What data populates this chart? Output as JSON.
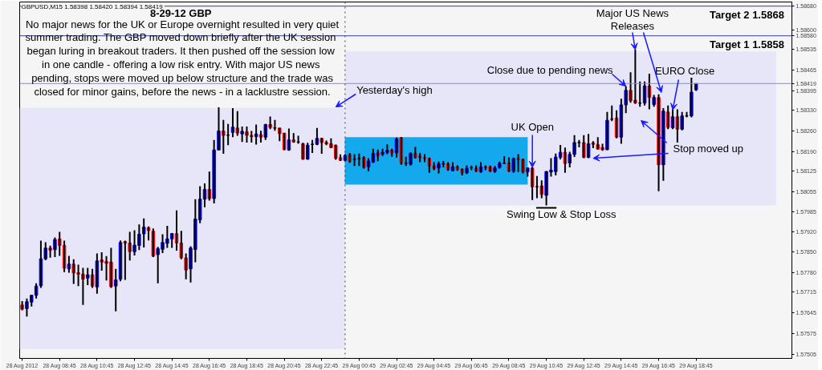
{
  "chart_data": {
    "type": "candlestick",
    "title": "8-29-12  GBP",
    "subtitle": "GBPUSD,M15  1.58398 1.58420 1.58394 1.58419",
    "annotations": [
      "No major news for the UK or Europe overnight resulted in very quiet\nsummer trading.  The GBP moved down briefly after the UK session\nbegan luring in breakout traders.  It then pushed off the session low\nin one candle - offering a low risk entry.  With major US news\npending, stops were moved up below structure and the trade was\nclosed for minor gains, before the news - in a lacklustre session.",
      {
        "text": "Yesterday's high",
        "x": "2012-08-28T23:30",
        "y": 1.5834
      },
      {
        "text": "UK Open",
        "x": "2012-08-29T10:00",
        "y": 1.58136
      },
      {
        "text": "Swing Low & Stop Loss",
        "x": "2012-08-29T10:45",
        "y": 1.58
      },
      {
        "text": "Close due to pending news",
        "x": "2012-08-29T15:00",
        "y": 1.5841
      },
      {
        "text": "Major US News\nReleases",
        "x": "2012-08-29T15:30",
        "y": 1.58533
      },
      {
        "text": "EURO Close",
        "x": "2012-08-29T17:30",
        "y": 1.5833
      },
      {
        "text": "Stop moved up",
        "x": "2012-08-29T13:15",
        "y": 1.58167
      }
    ],
    "x": [
      "2012-08-28T06:45",
      "2012-08-28T07:00",
      "2012-08-28T07:15",
      "2012-08-28T07:30",
      "2012-08-28T07:45",
      "2012-08-28T08:00",
      "2012-08-28T08:15",
      "2012-08-28T08:30",
      "2012-08-28T08:45",
      "2012-08-28T09:00",
      "2012-08-28T09:15",
      "2012-08-28T09:30",
      "2012-08-28T09:45",
      "2012-08-28T10:00",
      "2012-08-28T10:15",
      "2012-08-28T10:30",
      "2012-08-28T10:45",
      "2012-08-28T11:00",
      "2012-08-28T11:15",
      "2012-08-28T11:30",
      "2012-08-28T11:45",
      "2012-08-28T12:00",
      "2012-08-28T12:15",
      "2012-08-28T12:30",
      "2012-08-28T12:45",
      "2012-08-28T13:00",
      "2012-08-28T13:15",
      "2012-08-28T13:30",
      "2012-08-28T13:45",
      "2012-08-28T14:00",
      "2012-08-28T14:15",
      "2012-08-28T14:30",
      "2012-08-28T14:45",
      "2012-08-28T15:00",
      "2012-08-28T15:15",
      "2012-08-28T15:30",
      "2012-08-28T15:45",
      "2012-08-28T16:00",
      "2012-08-28T16:15",
      "2012-08-28T16:30",
      "2012-08-28T16:45",
      "2012-08-28T17:00",
      "2012-08-28T17:15",
      "2012-08-28T17:30",
      "2012-08-28T17:45",
      "2012-08-28T18:00",
      "2012-08-28T18:15",
      "2012-08-28T18:30",
      "2012-08-28T18:45",
      "2012-08-28T19:00",
      "2012-08-28T19:15",
      "2012-08-28T19:30",
      "2012-08-28T19:45",
      "2012-08-28T20:00",
      "2012-08-28T20:15",
      "2012-08-28T20:30",
      "2012-08-28T20:45",
      "2012-08-28T21:00",
      "2012-08-28T21:15",
      "2012-08-28T21:30",
      "2012-08-28T21:45",
      "2012-08-28T22:00",
      "2012-08-28T22:15",
      "2012-08-28T22:30",
      "2012-08-28T22:45",
      "2012-08-28T23:00",
      "2012-08-28T23:15",
      "2012-08-28T23:30",
      "2012-08-28T23:45",
      "2012-08-29T00:00",
      "2012-08-29T00:15",
      "2012-08-29T00:30",
      "2012-08-29T00:45",
      "2012-08-29T01:00",
      "2012-08-29T01:15",
      "2012-08-29T01:30",
      "2012-08-29T01:45",
      "2012-08-29T02:00",
      "2012-08-29T02:15",
      "2012-08-29T02:30",
      "2012-08-29T02:45",
      "2012-08-29T03:00",
      "2012-08-29T03:15",
      "2012-08-29T03:30",
      "2012-08-29T03:45",
      "2012-08-29T04:00",
      "2012-08-29T04:15",
      "2012-08-29T04:30",
      "2012-08-29T04:45",
      "2012-08-29T05:00",
      "2012-08-29T05:15",
      "2012-08-29T05:30",
      "2012-08-29T05:45",
      "2012-08-29T06:00",
      "2012-08-29T06:15",
      "2012-08-29T06:30",
      "2012-08-29T06:45",
      "2012-08-29T07:00",
      "2012-08-29T07:15",
      "2012-08-29T07:30",
      "2012-08-29T07:45",
      "2012-08-29T08:00",
      "2012-08-29T08:15",
      "2012-08-29T08:30",
      "2012-08-29T08:45",
      "2012-08-29T09:00",
      "2012-08-29T09:15",
      "2012-08-29T09:30",
      "2012-08-29T09:45",
      "2012-08-29T10:00",
      "2012-08-29T10:15",
      "2012-08-29T10:30",
      "2012-08-29T10:45",
      "2012-08-29T11:00",
      "2012-08-29T11:15",
      "2012-08-29T11:30",
      "2012-08-29T11:45",
      "2012-08-29T12:00",
      "2012-08-29T12:15",
      "2012-08-29T12:30",
      "2012-08-29T12:45",
      "2012-08-29T13:00",
      "2012-08-29T13:15",
      "2012-08-29T13:30",
      "2012-08-29T13:45",
      "2012-08-29T14:00",
      "2012-08-29T14:15",
      "2012-08-29T14:30",
      "2012-08-29T14:45",
      "2012-08-29T15:00",
      "2012-08-29T15:15",
      "2012-08-29T15:30",
      "2012-08-29T15:45",
      "2012-08-29T16:00",
      "2012-08-29T16:15",
      "2012-08-29T16:30",
      "2012-08-29T16:45",
      "2012-08-29T17:00",
      "2012-08-29T17:15",
      "2012-08-29T17:30",
      "2012-08-29T17:45",
      "2012-08-29T18:00",
      "2012-08-29T18:15",
      "2012-08-29T18:30",
      "2012-08-29T18:45"
    ],
    "ohlc": [
      [
        1.57672,
        1.57685,
        1.57654,
        1.57658
      ],
      [
        1.5766,
        1.57694,
        1.57633,
        1.57683
      ],
      [
        1.57682,
        1.57707,
        1.57667,
        1.57705
      ],
      [
        1.57705,
        1.57745,
        1.57694,
        1.57736
      ],
      [
        1.57737,
        1.57889,
        1.5773,
        1.57828
      ],
      [
        1.57828,
        1.57884,
        1.57823,
        1.57864
      ],
      [
        1.57864,
        1.57872,
        1.57832,
        1.57857
      ],
      [
        1.57859,
        1.579,
        1.57834,
        1.57893
      ],
      [
        1.57895,
        1.57919,
        1.57838,
        1.57873
      ],
      [
        1.57873,
        1.57889,
        1.57783,
        1.57796
      ],
      [
        1.57794,
        1.57838,
        1.57781,
        1.5781
      ],
      [
        1.5781,
        1.57826,
        1.57743,
        1.5778
      ],
      [
        1.57781,
        1.57808,
        1.57736,
        1.57776
      ],
      [
        1.57776,
        1.57797,
        1.57672,
        1.57759
      ],
      [
        1.57763,
        1.57797,
        1.57739,
        1.57774
      ],
      [
        1.57774,
        1.57794,
        1.5773,
        1.57736
      ],
      [
        1.57733,
        1.57846,
        1.5771,
        1.57821
      ],
      [
        1.57824,
        1.5785,
        1.57788,
        1.57817
      ],
      [
        1.57819,
        1.57837,
        1.57755,
        1.57813
      ],
      [
        1.57817,
        1.57865,
        1.5773,
        1.57734
      ],
      [
        1.57736,
        1.57794,
        1.57651,
        1.57757
      ],
      [
        1.57759,
        1.5789,
        1.57752,
        1.57883
      ],
      [
        1.57886,
        1.57889,
        1.57757,
        1.5788
      ],
      [
        1.57881,
        1.57919,
        1.57822,
        1.57852
      ],
      [
        1.57852,
        1.57924,
        1.57839,
        1.57874
      ],
      [
        1.57873,
        1.57944,
        1.57857,
        1.57911
      ],
      [
        1.57912,
        1.57964,
        1.57866,
        1.57935
      ],
      [
        1.57933,
        1.57937,
        1.5789,
        1.57923
      ],
      [
        1.57921,
        1.5793,
        1.57834,
        1.57837
      ],
      [
        1.57842,
        1.57868,
        1.57745,
        1.57862
      ],
      [
        1.5786,
        1.57911,
        1.57847,
        1.57883
      ],
      [
        1.5788,
        1.57939,
        1.57865,
        1.57895
      ],
      [
        1.57895,
        1.57915,
        1.57865,
        1.57913
      ],
      [
        1.57913,
        1.57991,
        1.57855,
        1.57881
      ],
      [
        1.57881,
        1.57922,
        1.57826,
        1.57831
      ],
      [
        1.57831,
        1.57846,
        1.57759,
        1.5779
      ],
      [
        1.57794,
        1.5787,
        1.57748,
        1.57864
      ],
      [
        1.57859,
        1.58029,
        1.57816,
        1.57962
      ],
      [
        1.57959,
        1.58073,
        1.57948,
        1.58029
      ],
      [
        1.58029,
        1.58082,
        1.58002,
        1.58062
      ],
      [
        1.58062,
        1.58122,
        1.58024,
        1.58031
      ],
      [
        1.58031,
        1.58229,
        1.58015,
        1.58195
      ],
      [
        1.58195,
        1.58339,
        1.58194,
        1.58259
      ],
      [
        1.58259,
        1.58296,
        1.58182,
        1.58244
      ],
      [
        1.58245,
        1.58283,
        1.58211,
        1.58245
      ],
      [
        1.58254,
        1.58336,
        1.58238,
        1.58272
      ],
      [
        1.58269,
        1.58326,
        1.58243,
        1.58252
      ],
      [
        1.58249,
        1.58274,
        1.58222,
        1.58258
      ],
      [
        1.58256,
        1.58274,
        1.5822,
        1.58244
      ],
      [
        1.58244,
        1.58259,
        1.5822,
        1.5824
      ],
      [
        1.5824,
        1.58281,
        1.58213,
        1.58249
      ],
      [
        1.58247,
        1.5826,
        1.5822,
        1.58238
      ],
      [
        1.58238,
        1.58283,
        1.58229,
        1.58281
      ],
      [
        1.58281,
        1.58308,
        1.58265,
        1.58271
      ],
      [
        1.58269,
        1.58296,
        1.5826,
        1.58269
      ],
      [
        1.58269,
        1.58269,
        1.58225,
        1.5825
      ],
      [
        1.58252,
        1.58252,
        1.58194,
        1.58196
      ],
      [
        1.58195,
        1.58267,
        1.58192,
        1.58229
      ],
      [
        1.58229,
        1.58252,
        1.58219,
        1.58222
      ],
      [
        1.58222,
        1.58243,
        1.58216,
        1.58222
      ],
      [
        1.58216,
        1.58219,
        1.58162,
        1.58164
      ],
      [
        1.58164,
        1.58219,
        1.58162,
        1.58211
      ],
      [
        1.58214,
        1.58229,
        1.58185,
        1.58214
      ],
      [
        1.58214,
        1.58269,
        1.58211,
        1.58234
      ],
      [
        1.58234,
        1.58236,
        1.58182,
        1.5822
      ],
      [
        1.5822,
        1.58227,
        1.58211,
        1.58216
      ],
      [
        1.58216,
        1.58234,
        1.58201,
        1.58203
      ],
      [
        1.58211,
        1.58213,
        1.58162,
        1.58167
      ],
      [
        1.58169,
        1.5818,
        1.58158,
        1.5816
      ],
      [
        1.5816,
        1.58181,
        1.58157,
        1.58176
      ],
      [
        1.58179,
        1.58185,
        1.58152,
        1.58156
      ],
      [
        1.58163,
        1.58181,
        1.58141,
        1.58163
      ],
      [
        1.58166,
        1.58183,
        1.58141,
        1.58166
      ],
      [
        1.58169,
        1.58174,
        1.58132,
        1.58136
      ],
      [
        1.58138,
        1.58167,
        1.58123,
        1.58158
      ],
      [
        1.58154,
        1.58199,
        1.58151,
        1.58183
      ],
      [
        1.58185,
        1.58196,
        1.58157,
        1.58176
      ],
      [
        1.58181,
        1.58199,
        1.58175,
        1.58187
      ],
      [
        1.58187,
        1.58214,
        1.58181,
        1.58194
      ],
      [
        1.58194,
        1.58199,
        1.58172,
        1.58185
      ],
      [
        1.58185,
        1.58237,
        1.58169,
        1.58232
      ],
      [
        1.58236,
        1.58239,
        1.58145,
        1.5815
      ],
      [
        1.5815,
        1.58172,
        1.58141,
        1.5815
      ],
      [
        1.58147,
        1.58187,
        1.58142,
        1.58183
      ],
      [
        1.58183,
        1.58205,
        1.58166,
        1.5817
      ],
      [
        1.58174,
        1.58185,
        1.58154,
        1.58169
      ],
      [
        1.58169,
        1.58181,
        1.58154,
        1.58166
      ],
      [
        1.58167,
        1.58169,
        1.58118,
        1.58141
      ],
      [
        1.58141,
        1.58154,
        1.58127,
        1.58132
      ],
      [
        1.58134,
        1.58156,
        1.58116,
        1.58148
      ],
      [
        1.58148,
        1.58158,
        1.58136,
        1.58148
      ],
      [
        1.58148,
        1.58154,
        1.58125,
        1.58129
      ],
      [
        1.58125,
        1.58154,
        1.58123,
        1.58138
      ],
      [
        1.58138,
        1.58143,
        1.58125,
        1.5813
      ],
      [
        1.5813,
        1.58133,
        1.58109,
        1.58118
      ],
      [
        1.58118,
        1.58143,
        1.58114,
        1.58133
      ],
      [
        1.58135,
        1.58142,
        1.58127,
        1.58135
      ],
      [
        1.58134,
        1.58143,
        1.58121,
        1.58123
      ],
      [
        1.58121,
        1.58154,
        1.58118,
        1.58138
      ],
      [
        1.58138,
        1.58143,
        1.58127,
        1.58134
      ],
      [
        1.58138,
        1.58142,
        1.58121,
        1.58123
      ],
      [
        1.58123,
        1.58141,
        1.58118,
        1.58134
      ],
      [
        1.58136,
        1.58156,
        1.58132,
        1.5815
      ],
      [
        1.5815,
        1.58174,
        1.58147,
        1.5815
      ],
      [
        1.58151,
        1.5817,
        1.58121,
        1.58123
      ],
      [
        1.58123,
        1.58169,
        1.58118,
        1.58166
      ],
      [
        1.58166,
        1.58181,
        1.58121,
        1.58163
      ],
      [
        1.58163,
        1.58166,
        1.58116,
        1.58121
      ],
      [
        1.58121,
        1.58136,
        1.58105,
        1.58134
      ],
      [
        1.58134,
        1.58136,
        1.58026,
        1.58071
      ],
      [
        1.58071,
        1.58107,
        1.58032,
        1.58071
      ],
      [
        1.58074,
        1.58092,
        1.58032,
        1.58045
      ],
      [
        1.58042,
        1.58124,
        1.58008,
        1.58122
      ],
      [
        1.58121,
        1.58167,
        1.58105,
        1.58127
      ],
      [
        1.58122,
        1.58183,
        1.58109,
        1.58171
      ],
      [
        1.5817,
        1.58212,
        1.58163,
        1.58187
      ],
      [
        1.58187,
        1.58203,
        1.58118,
        1.58149
      ],
      [
        1.58151,
        1.58189,
        1.58136,
        1.5818
      ],
      [
        1.5818,
        1.58245,
        1.58171,
        1.5822
      ],
      [
        1.5822,
        1.58229,
        1.58204,
        1.5822
      ],
      [
        1.5822,
        1.58245,
        1.58167,
        1.5817
      ],
      [
        1.5817,
        1.58249,
        1.58167,
        1.58216
      ],
      [
        1.58219,
        1.58225,
        1.58201,
        1.58214
      ],
      [
        1.58213,
        1.58238,
        1.58196,
        1.58198
      ],
      [
        1.58203,
        1.58216,
        1.58192,
        1.58196
      ],
      [
        1.58196,
        1.58323,
        1.58194,
        1.58295
      ],
      [
        1.58299,
        1.58345,
        1.58292,
        1.58299
      ],
      [
        1.58303,
        1.58329,
        1.58234,
        1.58238
      ],
      [
        1.58238,
        1.58368,
        1.58216,
        1.58347
      ],
      [
        1.58347,
        1.5841,
        1.58319,
        1.58396
      ],
      [
        1.58396,
        1.58457,
        1.58354,
        1.58361
      ],
      [
        1.58363,
        1.58533,
        1.5835,
        1.58354
      ],
      [
        1.58353,
        1.58426,
        1.58341,
        1.58353
      ],
      [
        1.58353,
        1.58426,
        1.58345,
        1.58411
      ],
      [
        1.58411,
        1.58452,
        1.58332,
        1.58372
      ],
      [
        1.58348,
        1.58381,
        1.58341,
        1.58372
      ],
      [
        1.58372,
        1.58383,
        1.58056,
        1.58145
      ],
      [
        1.58145,
        1.58336,
        1.58091,
        1.58326
      ],
      [
        1.58323,
        1.58345,
        1.58265,
        1.58271
      ],
      [
        1.5827,
        1.58332,
        1.58265,
        1.58307
      ],
      [
        1.58307,
        1.58332,
        1.5822,
        1.58265
      ],
      [
        1.58265,
        1.58323,
        1.58261,
        1.5831
      ],
      [
        1.5831,
        1.58323,
        1.58305,
        1.5831
      ],
      [
        1.5831,
        1.58439,
        1.58305,
        1.5839
      ],
      [
        1.58398,
        1.5842,
        1.58394,
        1.58419
      ]
    ],
    "colors": [
      "#ff0000",
      "#0000ff",
      "#0000ff",
      "#0000ff",
      "#0000ff",
      "#0000ff",
      "#ff0000",
      "#0000ff",
      "#ff0000",
      "#ff0000",
      "#0000ff",
      "#ff0000",
      "#ff0000",
      "#ff0000",
      "#0000ff",
      "#ff0000",
      "#0000ff",
      "#ff0000",
      "#ff0000",
      "#ff0000",
      "#0000ff",
      "#0000ff",
      "#ff0000",
      "#ff0000",
      "#0000ff",
      "#0000ff",
      "#0000ff",
      "#ff0000",
      "#ff0000",
      "#0000ff",
      "#0000ff",
      "#0000ff",
      "#0000ff",
      "#ff0000",
      "#ff0000",
      "#ff0000",
      "#0000ff",
      "#0000ff",
      "#0000ff",
      "#0000ff",
      "#ff0000",
      "#0000ff",
      "#0000ff",
      "#ff0000",
      "#000000",
      "#0000ff",
      "#ff0000",
      "#0000ff",
      "#ff0000",
      "#ff0000",
      "#0000ff",
      "#ff0000",
      "#0000ff",
      "#ff0000",
      "#000000",
      "#ff0000",
      "#ff0000",
      "#0000ff",
      "#ff0000",
      "#000000",
      "#ff0000",
      "#0000ff",
      "#000000",
      "#0000ff",
      "#ff0000",
      "#ff0000",
      "#ff0000",
      "#ff0000",
      "#ff0000",
      "#0000ff",
      "#ff0000",
      "#000000",
      "#000000",
      "#ff0000",
      "#0000ff",
      "#0000ff",
      "#ff0000",
      "#0000ff",
      "#0000ff",
      "#ff0000",
      "#0000ff",
      "#ff0000",
      "#000000",
      "#0000ff",
      "#ff0000",
      "#ff0000",
      "#ff0000",
      "#ff0000",
      "#ff0000",
      "#0000ff",
      "#000000",
      "#ff0000",
      "#0000ff",
      "#ff0000",
      "#ff0000",
      "#0000ff",
      "#000000",
      "#ff0000",
      "#0000ff",
      "#ff0000",
      "#ff0000",
      "#0000ff",
      "#0000ff",
      "#000000",
      "#ff0000",
      "#0000ff",
      "#ff0000",
      "#ff0000",
      "#0000ff",
      "#ff0000",
      "#000000",
      "#ff0000",
      "#0000ff",
      "#0000ff",
      "#0000ff",
      "#0000ff",
      "#ff0000",
      "#0000ff",
      "#0000ff",
      "#000000",
      "#ff0000",
      "#0000ff",
      "#ff0000",
      "#ff0000",
      "#ff0000",
      "#0000ff",
      "#000000",
      "#ff0000",
      "#0000ff",
      "#0000ff",
      "#ff0000",
      "#ff0000",
      "#000000",
      "#0000ff",
      "#ff0000",
      "#0000ff",
      "#ff0000",
      "#0000ff",
      "#ff0000",
      "#0000ff",
      "#ff0000",
      "#0000ff",
      "#000000",
      "#0000ff",
      "#0000ff"
    ],
    "xlim": [
      "2012-08-28T06:37",
      "2012-08-29T23:52"
    ],
    "xticks": [
      {
        "value": "2012-08-28T06:45",
        "label": "28 Aug 2012"
      },
      {
        "value": "2012-08-28T08:45",
        "label": "28 Aug 08:45"
      },
      {
        "value": "2012-08-28T10:45",
        "label": "28 Aug 10:45"
      },
      {
        "value": "2012-08-28T12:45",
        "label": "28 Aug 12:45"
      },
      {
        "value": "2012-08-28T14:45",
        "label": "28 Aug 14:45"
      },
      {
        "value": "2012-08-28T16:45",
        "label": "28 Aug 16:45"
      },
      {
        "value": "2012-08-28T18:45",
        "label": "28 Aug 18:45"
      },
      {
        "value": "2012-08-28T20:45",
        "label": "28 Aug 20:45"
      },
      {
        "value": "2012-08-28T22:45",
        "label": "28 Aug 22:45"
      },
      {
        "value": "2012-08-29T00:45",
        "label": "29 Aug 00:45"
      },
      {
        "value": "2012-08-29T02:45",
        "label": "29 Aug 02:45"
      },
      {
        "value": "2012-08-29T04:45",
        "label": "29 Aug 04:45"
      },
      {
        "value": "2012-08-29T06:45",
        "label": "29 Aug 06:45"
      },
      {
        "value": "2012-08-29T08:45",
        "label": "29 Aug 08:45"
      },
      {
        "value": "2012-08-29T10:45",
        "label": "29 Aug 10:45"
      },
      {
        "value": "2012-08-29T12:45",
        "label": "29 Aug 12:45"
      },
      {
        "value": "2012-08-29T14:45",
        "label": "29 Aug 14:45"
      },
      {
        "value": "2012-08-29T16:45",
        "label": "29 Aug 16:45"
      },
      {
        "value": "2012-08-29T18:45",
        "label": "29 Aug 18:45"
      }
    ],
    "ylim": [
      1.57492,
      1.58694
    ],
    "yticks": [
      {
        "value": 1.5868,
        "label": "1.58680"
      },
      {
        "value": 1.586,
        "label": "1.58600"
      },
      {
        "value": 1.5858,
        "label": "1.58580"
      },
      {
        "value": 1.58419,
        "label": "1.58419"
      },
      {
        "value": 1.58535,
        "label": "1.58535"
      },
      {
        "value": 1.58465,
        "label": "1.58465"
      },
      {
        "value": 1.58395,
        "label": "1.58395"
      },
      {
        "value": 1.5833,
        "label": "1.58330"
      },
      {
        "value": 1.5826,
        "label": "1.58260"
      },
      {
        "value": 1.5819,
        "label": "1.58190"
      },
      {
        "value": 1.58125,
        "label": "1.58125"
      },
      {
        "value": 1.58055,
        "label": "1.58055"
      },
      {
        "value": 1.57985,
        "label": "1.57985"
      },
      {
        "value": 1.5792,
        "label": "1.57920"
      },
      {
        "value": 1.5785,
        "label": "1.57850"
      },
      {
        "value": 1.5778,
        "label": "1.57780"
      },
      {
        "value": 1.57715,
        "label": "1.57715"
      },
      {
        "value": 1.57645,
        "label": "1.57645"
      },
      {
        "value": 1.57575,
        "label": "1.57575"
      },
      {
        "value": 1.57505,
        "label": "1.57505"
      }
    ],
    "ref_lines": [
      {
        "axis": "y",
        "value": 1.5868,
        "label": "Target 2  1.5868",
        "color": "#3c3ca8"
      },
      {
        "axis": "y",
        "value": 1.5858,
        "label": "Target 1  1.5858",
        "color": "#3c3ca8"
      },
      {
        "axis": "y",
        "value": 1.58419,
        "color": "#8c8cb4"
      },
      {
        "axis": "x",
        "value": "2012-08-29T00:00",
        "color": "#404040",
        "line_style": "dotted"
      }
    ],
    "bands": [
      {
        "axis": "y",
        "from": 1.57524,
        "to": 1.58337,
        "color": "#e6e6f8"
      },
      {
        "axis": "y",
        "from": 1.58008,
        "to": 1.58527,
        "color": "#e6e6f8"
      },
      {
        "axis": "y",
        "from": 1.58078,
        "to": 1.58238,
        "color": "#14a9ec"
      }
    ]
  }
}
